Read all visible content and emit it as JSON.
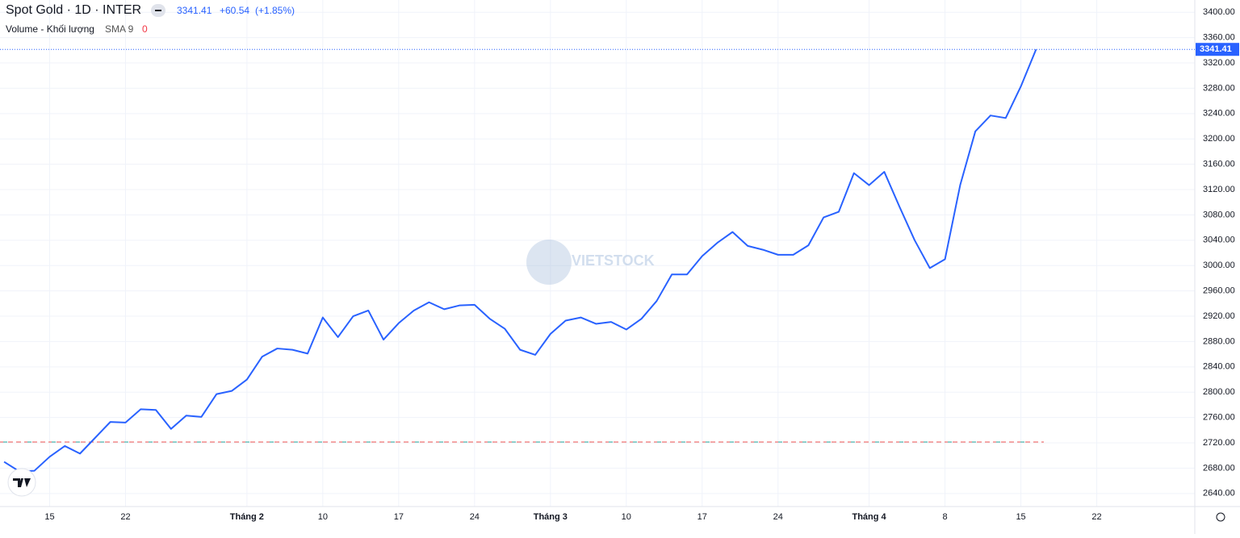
{
  "chart_data": {
    "type": "line",
    "title": "Spot Gold · 1D · INTER",
    "change": "+60.54",
    "change_pct": "(+1.85%)",
    "indicator": {
      "name": "Volume - Khối lượng",
      "ma": "SMA 9",
      "value": "0"
    },
    "watermark": "VIETSTOCK",
    "x": [
      0,
      1,
      2,
      3,
      4,
      5,
      6,
      7,
      8,
      9,
      10,
      11,
      12,
      13,
      14,
      15,
      16,
      17,
      18,
      19,
      20,
      21,
      22,
      23,
      24,
      25,
      26,
      27,
      28,
      29,
      30,
      31,
      32,
      33,
      34,
      35,
      36,
      37,
      38,
      39,
      40,
      41,
      42,
      43,
      44,
      45,
      46,
      47,
      48,
      49,
      50,
      51,
      52,
      53,
      54,
      55,
      56,
      57,
      58,
      59,
      60,
      61,
      62,
      63,
      64,
      65,
      66,
      67,
      68
    ],
    "series": [
      {
        "name": "Spot Gold",
        "color": "#2962ff",
        "values": [
          2690,
          2675,
          2676,
          2698,
          2715,
          2703,
          2728,
          2753,
          2752,
          2773,
          2772,
          2742,
          2763,
          2761,
          2797,
          2802,
          2820,
          2856,
          2869,
          2867,
          2861,
          2918,
          2887,
          2920,
          2929,
          2883,
          2909,
          2929,
          2942,
          2931,
          2937,
          2938,
          2916,
          2900,
          2867,
          2859,
          2892,
          2913,
          2918,
          2908,
          2911,
          2899,
          2916,
          2944,
          2986,
          2986,
          3015,
          3036,
          3053,
          3031,
          3025,
          3017,
          3017,
          3032,
          3076,
          3085,
          3146,
          3127,
          3148,
          3093,
          3040,
          2996,
          3010,
          3127,
          3212,
          3237,
          3233,
          3283,
          3341.41
        ]
      }
    ],
    "xlim": [
      -0.27,
      78.46
    ],
    "xticks": [
      {
        "value": 3,
        "label": "15"
      },
      {
        "value": 8,
        "label": "22"
      },
      {
        "value": 16,
        "label": "Tháng 2"
      },
      {
        "value": 21,
        "label": "10"
      },
      {
        "value": 26,
        "label": "17"
      },
      {
        "value": 31,
        "label": "24"
      },
      {
        "value": 36,
        "label": "Tháng 3"
      },
      {
        "value": 41,
        "label": "10"
      },
      {
        "value": 46,
        "label": "17"
      },
      {
        "value": 51,
        "label": "24"
      },
      {
        "value": 57,
        "label": "Tháng 4"
      },
      {
        "value": 62,
        "label": "8"
      },
      {
        "value": 67,
        "label": "15"
      },
      {
        "value": 72,
        "label": "22"
      }
    ],
    "ylim": [
      2619.4,
      3419.4
    ],
    "yticks": [
      {
        "value": 2640,
        "label": "2640.00"
      },
      {
        "value": 2680,
        "label": "2680.00"
      },
      {
        "value": 2720,
        "label": "2720.00"
      },
      {
        "value": 2760,
        "label": "2760.00"
      },
      {
        "value": 2800,
        "label": "2800.00"
      },
      {
        "value": 2840,
        "label": "2840.00"
      },
      {
        "value": 2880,
        "label": "2880.00"
      },
      {
        "value": 2920,
        "label": "2920.00"
      },
      {
        "value": 2960,
        "label": "2960.00"
      },
      {
        "value": 3000,
        "label": "3000.00"
      },
      {
        "value": 3040,
        "label": "3040.00"
      },
      {
        "value": 3080,
        "label": "3080.00"
      },
      {
        "value": 3120,
        "label": "3120.00"
      },
      {
        "value": 3160,
        "label": "3160.00"
      },
      {
        "value": 3200,
        "label": "3200.00"
      },
      {
        "value": 3240,
        "label": "3240.00"
      },
      {
        "value": 3280,
        "label": "3280.00"
      },
      {
        "value": 3320,
        "label": "3320.00"
      },
      {
        "value": 3360,
        "label": "3360.00"
      },
      {
        "value": 3400,
        "label": "3400.00"
      }
    ],
    "grid": true
  }
}
